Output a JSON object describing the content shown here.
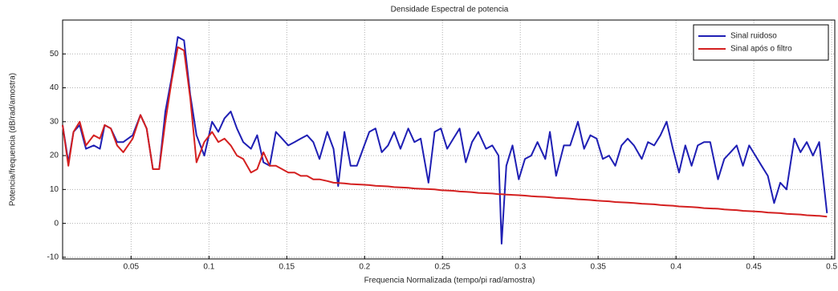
{
  "chart_data": {
    "type": "line",
    "title": "Densidade Espectral de potencia",
    "x_label": "Frequencia Normalizada  (tempo/pi rad/amostra)",
    "y_label": "Potencia/frequencia (dB/rad/amostra)",
    "x": [
      0.006,
      0.0097,
      0.013,
      0.017,
      0.021,
      0.026,
      0.03,
      0.033,
      0.037,
      0.041,
      0.045,
      0.051,
      0.056,
      0.06,
      0.064,
      0.068,
      0.072,
      0.076,
      0.08,
      0.084,
      0.088,
      0.092,
      0.097,
      0.102,
      0.106,
      0.11,
      0.114,
      0.118,
      0.122,
      0.127,
      0.131,
      0.135,
      0.139,
      0.143,
      0.147,
      0.151,
      0.155,
      0.159,
      0.163,
      0.167,
      0.171,
      0.176,
      0.18,
      0.183,
      0.187,
      0.191,
      0.195,
      0.199,
      0.203,
      0.207,
      0.211,
      0.215,
      0.219,
      0.223,
      0.228,
      0.232,
      0.236,
      0.241,
      0.245,
      0.249,
      0.253,
      0.257,
      0.261,
      0.265,
      0.269,
      0.273,
      0.278,
      0.282,
      0.286,
      0.288,
      0.291,
      0.295,
      0.299,
      0.303,
      0.307,
      0.311,
      0.316,
      0.319,
      0.323,
      0.328,
      0.332,
      0.337,
      0.341,
      0.345,
      0.349,
      0.353,
      0.357,
      0.361,
      0.365,
      0.369,
      0.373,
      0.378,
      0.382,
      0.386,
      0.39,
      0.394,
      0.398,
      0.402,
      0.406,
      0.41,
      0.414,
      0.418,
      0.422,
      0.427,
      0.431,
      0.435,
      0.439,
      0.443,
      0.447,
      0.451,
      0.455,
      0.459,
      0.463,
      0.467,
      0.471,
      0.476,
      0.48,
      0.484,
      0.488,
      0.492,
      0.497
    ],
    "series": [
      {
        "name": "Sinal ruidoso",
        "color": "#1f1fb4",
        "values": [
          29,
          18,
          27,
          29,
          22,
          23,
          22,
          29,
          28,
          24,
          24,
          26,
          32,
          28,
          16,
          16,
          33,
          43,
          55,
          54,
          38,
          26,
          20,
          30,
          27,
          31,
          33,
          28,
          24,
          22,
          26,
          18,
          17,
          27,
          25,
          23,
          24,
          25,
          26,
          24,
          19,
          27,
          22,
          11,
          27,
          17,
          17,
          22,
          27,
          28,
          21,
          23,
          27,
          22,
          28,
          24,
          25,
          12,
          27,
          28,
          22,
          25,
          28,
          18,
          24,
          27,
          22,
          23,
          20,
          -6,
          17,
          23,
          13,
          19,
          20,
          24,
          19,
          27,
          14,
          23,
          23,
          30,
          22,
          26,
          25,
          19,
          20,
          17,
          23,
          25,
          23,
          19,
          24,
          23,
          26,
          30,
          22,
          15,
          23,
          17,
          23,
          24,
          24,
          13,
          19,
          21,
          23,
          17,
          23,
          20,
          17,
          14,
          6,
          12,
          10,
          25,
          21,
          24,
          20,
          24,
          3
        ]
      },
      {
        "name": "Sinal após o filtro",
        "color": "#d42020",
        "values": [
          29,
          17,
          27,
          30,
          23,
          26,
          25,
          29,
          28,
          23,
          21,
          25,
          32,
          28,
          16,
          16,
          30,
          42,
          52,
          51,
          37,
          18,
          24,
          27,
          24,
          25,
          23,
          20,
          19,
          15,
          16,
          21,
          17,
          17,
          16,
          15,
          15,
          14,
          14,
          13,
          13,
          12.5,
          12,
          11.9,
          11.8,
          11.6,
          11.5,
          11.4,
          11.3,
          11.1,
          11,
          10.9,
          10.7,
          10.6,
          10.5,
          10.3,
          10.2,
          10.1,
          10,
          9.8,
          9.7,
          9.6,
          9.4,
          9.3,
          9.2,
          9,
          8.9,
          8.8,
          8.6,
          8.6,
          8.5,
          8.4,
          8.3,
          8.2,
          8,
          7.9,
          7.8,
          7.7,
          7.5,
          7.4,
          7.3,
          7.1,
          7,
          6.9,
          6.7,
          6.6,
          6.5,
          6.3,
          6.2,
          6.1,
          6,
          5.8,
          5.7,
          5.6,
          5.4,
          5.3,
          5.2,
          5,
          4.9,
          4.8,
          4.7,
          4.5,
          4.4,
          4.3,
          4.1,
          4,
          3.9,
          3.7,
          3.6,
          3.5,
          3.4,
          3.2,
          3.1,
          3,
          2.8,
          2.7,
          2.6,
          2.4,
          2.3,
          2.2,
          2
        ]
      }
    ],
    "xlim": [
      0.006,
      0.502
    ],
    "ylim": [
      -10.5,
      60
    ],
    "xticks": [
      0.05,
      0.1,
      0.15,
      0.2,
      0.25,
      0.3,
      0.35,
      0.4,
      0.45,
      0.5
    ],
    "yticks": [
      -10,
      0,
      10,
      20,
      30,
      40,
      50
    ],
    "grid": true,
    "legend": "upper-right"
  }
}
